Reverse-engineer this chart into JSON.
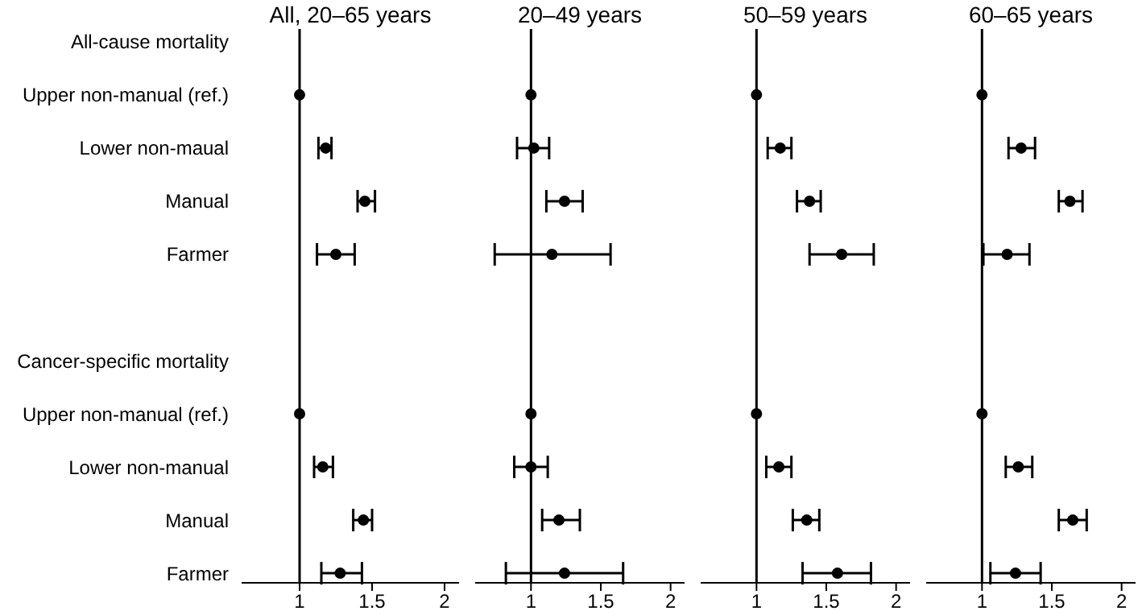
{
  "chart_data": [
    {
      "type": "scatter",
      "title": "All, 20–65 years",
      "orientation": "horizontal",
      "categories": [
        "All-cause mortality",
        "Upper non-manual (ref.)",
        "Lower non-maual",
        "Manual",
        "Farmer",
        null,
        "Cancer-specific mortality",
        "Upper non-manual (ref.)",
        "Lower non-manual",
        "Manual",
        "Farmer"
      ],
      "values": [
        null,
        1,
        1.18,
        1.45,
        1.25,
        null,
        null,
        1,
        1.16,
        1.44,
        1.28
      ],
      "errors": [
        null,
        null,
        [
          1.13,
          1.22
        ],
        [
          1.4,
          1.52
        ],
        [
          1.12,
          1.38
        ],
        null,
        null,
        null,
        [
          1.1,
          1.23
        ],
        [
          1.37,
          1.5
        ],
        [
          1.15,
          1.43
        ]
      ],
      "color": "#000000",
      "marker": "circle",
      "xlim": [
        0.6,
        2.1
      ],
      "xticks": [
        1,
        1.5,
        2
      ],
      "ref_lines": [
        {
          "axis": "x",
          "value": 1
        }
      ]
    },
    {
      "type": "scatter",
      "title": "20–49 years",
      "orientation": "horizontal",
      "categories": [
        null,
        null,
        null,
        null,
        null,
        null,
        null,
        null,
        null,
        null,
        null
      ],
      "values": [
        null,
        1,
        1.02,
        1.24,
        1.15,
        null,
        null,
        1,
        1.0,
        1.2,
        1.24
      ],
      "errors": [
        null,
        null,
        [
          0.9,
          1.13
        ],
        [
          1.11,
          1.37
        ],
        [
          0.74,
          1.57
        ],
        null,
        null,
        null,
        [
          0.88,
          1.12
        ],
        [
          1.08,
          1.35
        ],
        [
          0.82,
          1.66
        ]
      ],
      "color": "#000000",
      "marker": "circle",
      "xlim": [
        0.6,
        2.1
      ],
      "xticks": [
        1,
        1.5,
        2
      ],
      "ref_lines": [
        {
          "axis": "x",
          "value": 1
        }
      ],
      "tick_labels": "x"
    },
    {
      "type": "scatter",
      "title": "50–59 years",
      "orientation": "horizontal",
      "categories": [
        null,
        null,
        null,
        null,
        null,
        null,
        null,
        null,
        null,
        null,
        null
      ],
      "values": [
        null,
        1,
        1.17,
        1.38,
        1.61,
        null,
        null,
        1,
        1.16,
        1.36,
        1.58
      ],
      "errors": [
        null,
        null,
        [
          1.08,
          1.25
        ],
        [
          1.29,
          1.46
        ],
        [
          1.38,
          1.84
        ],
        null,
        null,
        null,
        [
          1.07,
          1.25
        ],
        [
          1.26,
          1.45
        ],
        [
          1.33,
          1.82
        ]
      ],
      "color": "#000000",
      "marker": "circle",
      "xlim": [
        0.6,
        2.1
      ],
      "xticks": [
        1,
        1.5,
        2
      ],
      "ref_lines": [
        {
          "axis": "x",
          "value": 1
        }
      ],
      "tick_labels": "x"
    },
    {
      "type": "scatter",
      "title": "60–65 years",
      "orientation": "horizontal",
      "categories": [
        null,
        null,
        null,
        null,
        null,
        null,
        null,
        null,
        null,
        null,
        null
      ],
      "values": [
        null,
        1,
        1.28,
        1.63,
        1.18,
        null,
        null,
        1,
        1.26,
        1.65,
        1.24
      ],
      "errors": [
        null,
        null,
        [
          1.19,
          1.38
        ],
        [
          1.55,
          1.72
        ],
        [
          1.01,
          1.34
        ],
        null,
        null,
        null,
        [
          1.17,
          1.36
        ],
        [
          1.55,
          1.75
        ],
        [
          1.06,
          1.42
        ]
      ],
      "color": "#000000",
      "marker": "circle",
      "xlim": [
        0.6,
        2.1
      ],
      "xticks": [
        1,
        1.5,
        2
      ],
      "ref_lines": [
        {
          "axis": "x",
          "value": 1
        }
      ],
      "tick_labels": "x"
    }
  ]
}
